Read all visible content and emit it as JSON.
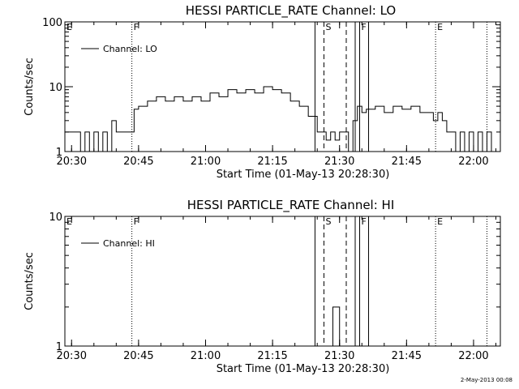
{
  "footer_timestamp": "2-May-2013 00:08",
  "chart_data": [
    {
      "type": "line",
      "title": "HESSI PARTICLE_RATE Channel: LO",
      "xlabel": "Start Time (01-May-13 20:28:30)",
      "ylabel": "Counts/sec",
      "yscale": "log",
      "ylim": [
        1,
        100
      ],
      "ytick_labels": [
        "1",
        "10",
        "100"
      ],
      "ytick_values": [
        1,
        10,
        100
      ],
      "xlim": [
        "20:28:30",
        "22:06:00"
      ],
      "xtick_labels": [
        "20:30",
        "20:45",
        "21:00",
        "21:15",
        "21:30",
        "21:45",
        "22:00"
      ],
      "legend": "top-left",
      "grid": false,
      "series": [
        {
          "name": "Channel: LO",
          "x": [
            "20:28:30",
            "20:31:00",
            "20:32:00",
            "20:33:00",
            "20:34:00",
            "20:35:00",
            "20:36:00",
            "20:37:00",
            "20:38:00",
            "20:39:00",
            "20:40:00",
            "20:41:00",
            "20:42:00",
            "20:43:00",
            "20:44:00",
            "20:45:00",
            "20:47:00",
            "20:49:00",
            "20:51:00",
            "20:53:00",
            "20:55:00",
            "20:57:00",
            "20:59:00",
            "21:01:00",
            "21:03:00",
            "21:05:00",
            "21:07:00",
            "21:09:00",
            "21:11:00",
            "21:13:00",
            "21:15:00",
            "21:17:00",
            "21:19:00",
            "21:21:00",
            "21:23:00",
            "21:25:00",
            "21:26:00",
            "21:27:00",
            "21:28:00",
            "21:29:00",
            "21:30:00",
            "21:31:00",
            "21:32:00",
            "21:33:00",
            "21:34:00",
            "21:35:00",
            "21:36:00",
            "21:38:00",
            "21:40:00",
            "21:42:00",
            "21:44:00",
            "21:46:00",
            "21:48:00",
            "21:50:00",
            "21:51:00",
            "21:52:00",
            "21:53:00",
            "21:54:00",
            "21:55:00",
            "21:56:00",
            "21:57:00",
            "21:58:00",
            "21:59:00",
            "22:00:00",
            "22:01:00",
            "22:02:00",
            "22:03:00",
            "22:04:00"
          ],
          "y": [
            2,
            2,
            1,
            2,
            1,
            2,
            1,
            2,
            1,
            3,
            2,
            2,
            2,
            2,
            4.5,
            5,
            6,
            7,
            6,
            7,
            6,
            7,
            6,
            8,
            7,
            9,
            8,
            9,
            8,
            10,
            9,
            8,
            6,
            5,
            3.5,
            2,
            2,
            1.5,
            2,
            1.5,
            2,
            2,
            1,
            3,
            5,
            4,
            4.5,
            5,
            4,
            5,
            4.5,
            5,
            4,
            4,
            3,
            4,
            3,
            2,
            2,
            1,
            2,
            1,
            2,
            1,
            2,
            1,
            2,
            1
          ]
        }
      ],
      "vertical_lines": [
        {
          "label": "E",
          "x": "20:28:30",
          "style": "dotted"
        },
        {
          "label": "F",
          "x": "20:43:30",
          "style": "dotted"
        },
        {
          "label": "",
          "x": "21:24:30",
          "style": "solid"
        },
        {
          "label": "S",
          "x": "21:26:30",
          "style": "dashed"
        },
        {
          "label": "",
          "x": "21:31:30",
          "style": "dashed"
        },
        {
          "label": "",
          "x": "21:33:30",
          "style": "solid"
        },
        {
          "label": "F",
          "x": "21:34:30",
          "style": "solid"
        },
        {
          "label": "",
          "x": "21:36:30",
          "style": "solid"
        },
        {
          "label": "E",
          "x": "21:51:30",
          "style": "dotted"
        },
        {
          "label": "",
          "x": "22:03:00",
          "style": "dotted"
        }
      ]
    },
    {
      "type": "line",
      "title": "HESSI PARTICLE_RATE Channel: HI",
      "xlabel": "Start Time (01-May-13 20:28:30)",
      "ylabel": "Counts/sec",
      "yscale": "log",
      "ylim": [
        1,
        10
      ],
      "ytick_labels": [
        "1",
        "10"
      ],
      "ytick_values": [
        1,
        10
      ],
      "xlim": [
        "20:28:30",
        "22:06:00"
      ],
      "xtick_labels": [
        "20:30",
        "20:45",
        "21:00",
        "21:15",
        "21:30",
        "21:45",
        "22:00"
      ],
      "legend": "top-left",
      "grid": false,
      "series": [
        {
          "name": "Channel: HI",
          "x": [
            "21:28:30",
            "21:28:30",
            "21:30:00",
            "21:30:00"
          ],
          "y": [
            1,
            2,
            2,
            1
          ]
        }
      ],
      "vertical_lines": [
        {
          "label": "E",
          "x": "20:28:30",
          "style": "dotted"
        },
        {
          "label": "F",
          "x": "20:43:30",
          "style": "dotted"
        },
        {
          "label": "",
          "x": "21:24:30",
          "style": "solid"
        },
        {
          "label": "S",
          "x": "21:26:30",
          "style": "dashed"
        },
        {
          "label": "",
          "x": "21:31:30",
          "style": "dashed"
        },
        {
          "label": "",
          "x": "21:33:30",
          "style": "solid"
        },
        {
          "label": "F",
          "x": "21:34:30",
          "style": "solid"
        },
        {
          "label": "",
          "x": "21:36:30",
          "style": "solid"
        },
        {
          "label": "E",
          "x": "21:51:30",
          "style": "dotted"
        },
        {
          "label": "",
          "x": "22:03:00",
          "style": "dotted"
        }
      ]
    }
  ]
}
